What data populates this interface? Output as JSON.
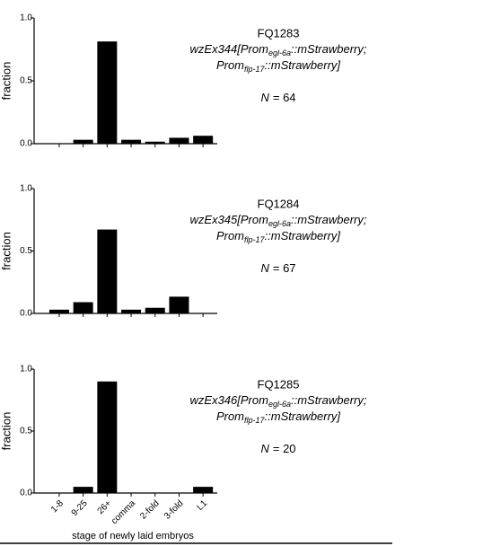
{
  "chart_data": [
    {
      "type": "bar",
      "ylabel": "fraction",
      "categories": [
        null,
        null,
        null,
        null,
        null,
        null,
        null
      ],
      "values": [
        0,
        0.031,
        0.813,
        0.031,
        0.016,
        0.047,
        0.063
      ],
      "color": "#000000",
      "ylim": [
        0,
        1
      ],
      "yticks": [
        {
          "value": 0,
          "label": "0.0"
        },
        0.5,
        {
          "value": 1,
          "label": "1.0"
        }
      ],
      "annotations": {
        "strain": "FQ1283",
        "genotype": [
          [
            "wzEx344[Prom",
            "egl-6a",
            "::mStrawberry;"
          ],
          [
            "Prom",
            "flp-17",
            "::mStrawberry]"
          ]
        ],
        "n": [
          "N",
          "= 64"
        ]
      }
    },
    {
      "type": "bar",
      "ylabel": "fraction",
      "categories": [
        null,
        null,
        null,
        null,
        null,
        null,
        null
      ],
      "values": [
        0.03,
        0.09,
        0.672,
        0.03,
        0.045,
        0.134,
        0
      ],
      "color": "#000000",
      "ylim": [
        0,
        1
      ],
      "yticks": [
        {
          "value": 0,
          "label": "0.0"
        },
        0.5,
        {
          "value": 1,
          "label": "1.0"
        }
      ],
      "annotations": {
        "strain": "FQ1284",
        "genotype": [
          [
            "wzEx345[Prom",
            "egl-6a",
            "::mStrawberry;"
          ],
          [
            "Prom",
            "flp-17",
            "::mStrawberry]"
          ]
        ],
        "n": [
          "N",
          "= 67"
        ]
      }
    },
    {
      "type": "bar",
      "ylabel": "fraction",
      "xlabel": "stage of newly laid embryos",
      "categories": [
        "1-8",
        "9-25",
        "26+",
        "comma",
        "2-fold",
        "3-fold",
        "L1"
      ],
      "values": [
        0,
        0.05,
        0.9,
        0,
        0,
        0,
        0.05
      ],
      "color": "#000000",
      "ylim": [
        0,
        1
      ],
      "yticks": [
        {
          "value": 0,
          "label": "0.0"
        },
        0.5,
        {
          "value": 1,
          "label": "1.0"
        }
      ],
      "annotations": {
        "strain": "FQ1285",
        "genotype": [
          [
            "wzEx346[Prom",
            "egl-6a",
            "::mStrawberry;"
          ],
          [
            "Prom",
            "flp-17",
            "::mStrawberry]"
          ]
        ],
        "n": [
          "N",
          "= 20"
        ]
      }
    }
  ]
}
